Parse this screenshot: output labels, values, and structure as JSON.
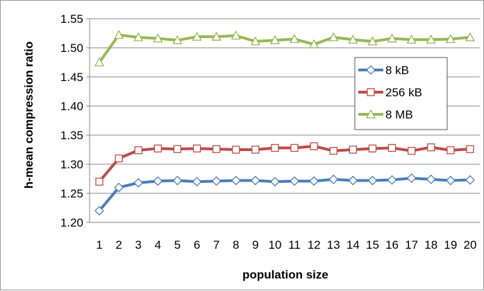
{
  "chart_data": {
    "type": "line",
    "title": "",
    "xlabel": "population size",
    "ylabel": "h-mean compression ratio",
    "x": [
      1,
      2,
      3,
      4,
      5,
      6,
      7,
      8,
      9,
      10,
      11,
      12,
      13,
      14,
      15,
      16,
      17,
      18,
      19,
      20
    ],
    "ylim": [
      1.2,
      1.55
    ],
    "yticks": [
      "1.20",
      "1.25",
      "1.30",
      "1.35",
      "1.40",
      "1.45",
      "1.50",
      "1.55"
    ],
    "grid": true,
    "legend_position": "right",
    "series": [
      {
        "name": "8 kB",
        "color": "#4a7ebb",
        "marker": "diamond",
        "values": [
          1.22,
          1.26,
          1.268,
          1.271,
          1.272,
          1.27,
          1.271,
          1.272,
          1.272,
          1.27,
          1.271,
          1.271,
          1.274,
          1.272,
          1.272,
          1.273,
          1.276,
          1.274,
          1.272,
          1.273
        ]
      },
      {
        "name": "256 kB",
        "color": "#be4b48",
        "marker": "square",
        "values": [
          1.27,
          1.31,
          1.324,
          1.327,
          1.326,
          1.327,
          1.326,
          1.325,
          1.325,
          1.328,
          1.328,
          1.331,
          1.323,
          1.325,
          1.327,
          1.328,
          1.323,
          1.329,
          1.324,
          1.326
        ]
      },
      {
        "name": "8 MB",
        "color": "#98b954",
        "marker": "triangle",
        "values": [
          1.475,
          1.522,
          1.518,
          1.516,
          1.513,
          1.519,
          1.519,
          1.521,
          1.511,
          1.513,
          1.515,
          1.506,
          1.518,
          1.514,
          1.511,
          1.516,
          1.514,
          1.514,
          1.515,
          1.518
        ]
      }
    ]
  }
}
